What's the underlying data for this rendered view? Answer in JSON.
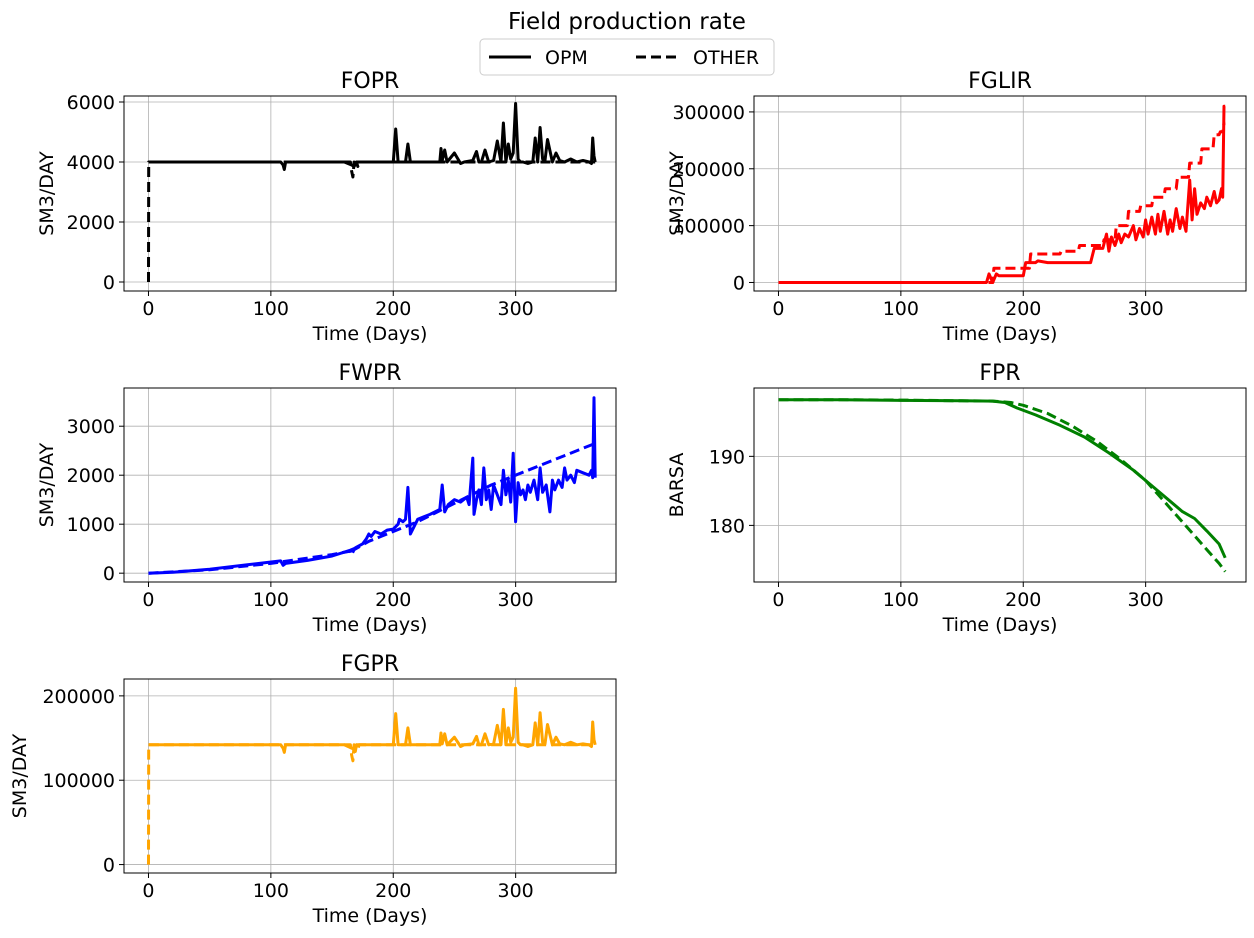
{
  "figure": {
    "title": "Field production rate",
    "legend": {
      "placement": "top-center",
      "entries": [
        {
          "label": "OPM",
          "style": "solid"
        },
        {
          "label": "OTHER",
          "style": "dashed"
        }
      ]
    }
  },
  "chart_data": [
    {
      "type": "line",
      "title": "FOPR",
      "xlabel": "Time (Days)",
      "ylabel": "SM3/DAY",
      "xlim": [
        -20,
        382
      ],
      "ylim": [
        -300,
        6200
      ],
      "xticks": [
        0,
        100,
        200,
        300
      ],
      "yticks": [
        0,
        2000,
        4000,
        6000
      ],
      "grid": true,
      "color": "#000000",
      "series": [
        {
          "name": "OPM",
          "style": "solid",
          "x": [
            0,
            108,
            110,
            111,
            112,
            160,
            166,
            168,
            170,
            195,
            200,
            202,
            204,
            206,
            210,
            212,
            214,
            225,
            238,
            239,
            240,
            242,
            244,
            250,
            255,
            258,
            265,
            268,
            270,
            272,
            275,
            278,
            282,
            285,
            288,
            290,
            292,
            294,
            296,
            298,
            300,
            302,
            304,
            306,
            310,
            314,
            316,
            318,
            320,
            322,
            324,
            326,
            330,
            333,
            336,
            340,
            345,
            350,
            355,
            360,
            362,
            363,
            364,
            365
          ],
          "y": [
            4000,
            4000,
            3900,
            3750,
            4000,
            4000,
            3900,
            3850,
            4000,
            4000,
            4000,
            5100,
            4000,
            4000,
            4000,
            4600,
            4000,
            4000,
            4000,
            4450,
            4050,
            4400,
            4000,
            4300,
            3950,
            4000,
            4050,
            4350,
            4000,
            4000,
            4400,
            4000,
            4050,
            4700,
            4000,
            5300,
            4000,
            4600,
            4100,
            4300,
            5950,
            4100,
            4000,
            4000,
            3950,
            4000,
            4800,
            4000,
            5150,
            4100,
            4050,
            4750,
            4000,
            4300,
            4050,
            4000,
            4100,
            4000,
            4050,
            4000,
            3950,
            4800,
            4200,
            4000
          ]
        },
        {
          "name": "OTHER",
          "style": "dashed",
          "x": [
            0,
            0.2,
            1,
            100,
            165,
            166,
            167,
            168,
            169,
            170,
            171,
            172,
            365
          ],
          "y": [
            0,
            4000,
            4000,
            4000,
            4000,
            3700,
            3500,
            4000,
            3800,
            4000,
            3850,
            4000,
            4000
          ]
        }
      ]
    },
    {
      "type": "line",
      "title": "FGLIR",
      "xlabel": "Time (Days)",
      "ylabel": "SM3/DAY",
      "xlim": [
        -20,
        382
      ],
      "ylim": [
        -15000,
        328000
      ],
      "xticks": [
        0,
        100,
        200,
        300
      ],
      "yticks": [
        0,
        100000,
        200000,
        300000
      ],
      "grid": true,
      "color": "#ff0000",
      "series": [
        {
          "name": "OPM",
          "style": "solid",
          "x": [
            0,
            170,
            172,
            175,
            178,
            180,
            200,
            202,
            210,
            212,
            220,
            222,
            255,
            258,
            265,
            268,
            270,
            272,
            275,
            278,
            280,
            283,
            286,
            290,
            292,
            295,
            298,
            300,
            302,
            305,
            308,
            310,
            312,
            315,
            318,
            320,
            322,
            325,
            328,
            330,
            333,
            336,
            338,
            340,
            342,
            345,
            348,
            350,
            353,
            356,
            358,
            360,
            362,
            363,
            364,
            365
          ],
          "y": [
            0,
            0,
            15000,
            0,
            15000,
            12000,
            12000,
            35000,
            35000,
            38000,
            35000,
            35000,
            35000,
            60000,
            60000,
            85000,
            55000,
            80000,
            65000,
            85000,
            70000,
            85000,
            80000,
            100000,
            75000,
            95000,
            80000,
            110000,
            85000,
            115000,
            85000,
            120000,
            90000,
            125000,
            85000,
            110000,
            90000,
            130000,
            95000,
            115000,
            90000,
            180000,
            110000,
            165000,
            120000,
            140000,
            130000,
            150000,
            135000,
            160000,
            140000,
            145000,
            165000,
            150000,
            310000,
            310000
          ]
        },
        {
          "name": "OTHER",
          "style": "dashed",
          "x": [
            0,
            175,
            176,
            180,
            181,
            205,
            206,
            230,
            231,
            245,
            246,
            265,
            266,
            275,
            276,
            285,
            286,
            295,
            296,
            305,
            306,
            315,
            316,
            325,
            326,
            335,
            336,
            345,
            346,
            355,
            356,
            360,
            361,
            363,
            364,
            365
          ],
          "y": [
            0,
            0,
            25000,
            25000,
            25000,
            25000,
            50000,
            50000,
            55000,
            55000,
            65000,
            65000,
            75000,
            75000,
            100000,
            100000,
            125000,
            125000,
            135000,
            135000,
            150000,
            150000,
            165000,
            165000,
            185000,
            185000,
            210000,
            210000,
            235000,
            235000,
            260000,
            260000,
            265000,
            265000,
            280000,
            280000
          ]
        }
      ]
    },
    {
      "type": "line",
      "title": "FWPR",
      "xlabel": "Time (Days)",
      "ylabel": "SM3/DAY",
      "xlim": [
        -20,
        382
      ],
      "ylim": [
        -180,
        3780
      ],
      "xticks": [
        0,
        100,
        200,
        300
      ],
      "yticks": [
        0,
        1000,
        2000,
        3000
      ],
      "grid": true,
      "color": "#0000ff",
      "series": [
        {
          "name": "OPM",
          "style": "solid",
          "x": [
            0,
            20,
            50,
            80,
            108,
            110,
            112,
            130,
            150,
            165,
            168,
            170,
            175,
            178,
            180,
            182,
            185,
            190,
            195,
            200,
            204,
            205,
            208,
            210,
            212,
            214,
            218,
            220,
            225,
            230,
            238,
            240,
            242,
            245,
            250,
            255,
            260,
            262,
            265,
            266,
            268,
            270,
            272,
            274,
            276,
            278,
            280,
            282,
            285,
            288,
            290,
            292,
            294,
            296,
            298,
            300,
            302,
            304,
            306,
            308,
            310,
            312,
            315,
            318,
            320,
            322,
            325,
            328,
            330,
            332,
            335,
            338,
            340,
            342,
            345,
            348,
            350,
            355,
            360,
            362,
            363,
            364,
            365
          ],
          "y": [
            0,
            20,
            80,
            170,
            250,
            160,
            200,
            260,
            350,
            470,
            500,
            530,
            600,
            700,
            800,
            750,
            850,
            800,
            880,
            900,
            1000,
            1100,
            1050,
            1100,
            1750,
            800,
            1000,
            1100,
            1150,
            1200,
            1300,
            1800,
            1250,
            1400,
            1500,
            1450,
            1550,
            1400,
            2350,
            1200,
            1500,
            1700,
            1400,
            2150,
            1500,
            1700,
            1300,
            1800,
            1600,
            1400,
            2100,
            1600,
            1900,
            1450,
            2450,
            1050,
            1850,
            1600,
            1700,
            1500,
            1800,
            1650,
            1900,
            1500,
            2150,
            1650,
            1800,
            1250,
            1900,
            1700,
            1900,
            1750,
            2150,
            1900,
            2000,
            1850,
            2100,
            2050,
            2000,
            2100,
            1950,
            3580,
            1950
          ]
        },
        {
          "name": "OTHER",
          "style": "dashed",
          "x": [
            0,
            50,
            100,
            150,
            165,
            166,
            167,
            168,
            180,
            200,
            220,
            240,
            260,
            280,
            300,
            320,
            340,
            365
          ],
          "y": [
            0,
            70,
            200,
            380,
            450,
            370,
            430,
            480,
            650,
            850,
            1050,
            1300,
            1550,
            1800,
            2000,
            2200,
            2400,
            2650
          ]
        }
      ]
    },
    {
      "type": "line",
      "title": "FPR",
      "xlabel": "Time (Days)",
      "ylabel": "BARSA",
      "xlim": [
        -20,
        382
      ],
      "ylim": [
        171.8,
        199.9
      ],
      "xticks": [
        0,
        100,
        200,
        300
      ],
      "yticks": [
        180,
        190
      ],
      "grid": true,
      "color": "#008000",
      "series": [
        {
          "name": "OPM",
          "style": "solid",
          "x": [
            0,
            50,
            100,
            150,
            175,
            185,
            195,
            210,
            230,
            250,
            270,
            290,
            300,
            310,
            320,
            330,
            340,
            350,
            360,
            365
          ],
          "y": [
            198.2,
            198.2,
            198.1,
            198.05,
            198.0,
            197.8,
            197.0,
            196.0,
            194.5,
            192.8,
            190.5,
            188.0,
            186.5,
            185.0,
            183.5,
            182.0,
            181.0,
            179.2,
            177.3,
            175.3
          ]
        },
        {
          "name": "OTHER",
          "style": "dashed",
          "x": [
            0,
            50,
            100,
            150,
            175,
            190,
            200,
            220,
            240,
            260,
            280,
            300,
            310,
            320,
            330,
            340,
            350,
            360,
            365
          ],
          "y": [
            198.2,
            198.2,
            198.15,
            198.05,
            198.0,
            197.8,
            197.4,
            196.2,
            194.4,
            192.2,
            189.5,
            186.5,
            184.5,
            182.5,
            180.5,
            178.5,
            176.5,
            174.5,
            173.3
          ]
        }
      ]
    },
    {
      "type": "line",
      "title": "FGPR",
      "xlabel": "Time (Days)",
      "ylabel": "SM3/DAY",
      "xlim": [
        -20,
        382
      ],
      "ylim": [
        -10000,
        220000
      ],
      "xticks": [
        0,
        100,
        200,
        300
      ],
      "yticks": [
        0,
        100000,
        200000
      ],
      "grid": true,
      "color": "#ffa500",
      "series": [
        {
          "name": "OPM",
          "style": "solid",
          "x": [
            0,
            108,
            110,
            111,
            112,
            160,
            166,
            168,
            170,
            195,
            200,
            202,
            204,
            206,
            210,
            212,
            214,
            225,
            238,
            239,
            240,
            242,
            244,
            250,
            255,
            258,
            265,
            268,
            270,
            272,
            275,
            278,
            282,
            285,
            288,
            290,
            292,
            294,
            296,
            298,
            300,
            302,
            304,
            306,
            310,
            314,
            316,
            318,
            320,
            322,
            324,
            326,
            330,
            333,
            336,
            340,
            345,
            350,
            355,
            360,
            362,
            363,
            364,
            365
          ],
          "y": [
            142000,
            142000,
            138000,
            133000,
            142000,
            142000,
            138000,
            137000,
            142000,
            142000,
            142000,
            179000,
            142000,
            142000,
            142000,
            162000,
            142000,
            142000,
            142000,
            156000,
            143000,
            155000,
            142000,
            151000,
            140000,
            142000,
            143000,
            152000,
            142000,
            142000,
            155000,
            142000,
            143000,
            165000,
            142000,
            184000,
            142000,
            162000,
            145000,
            151000,
            209000,
            145000,
            142000,
            142000,
            140000,
            142000,
            168000,
            142000,
            180000,
            145000,
            143000,
            166000,
            142000,
            151000,
            143000,
            142000,
            145000,
            142000,
            143000,
            142000,
            140000,
            169000,
            148000,
            142000
          ]
        },
        {
          "name": "OTHER",
          "style": "dashed",
          "x": [
            0,
            0.2,
            1,
            100,
            165,
            166,
            167,
            168,
            169,
            170,
            171,
            172,
            365
          ],
          "y": [
            0,
            142000,
            142000,
            142000,
            142000,
            130000,
            123000,
            142000,
            134000,
            142000,
            136000,
            142000,
            142000
          ]
        }
      ]
    }
  ]
}
